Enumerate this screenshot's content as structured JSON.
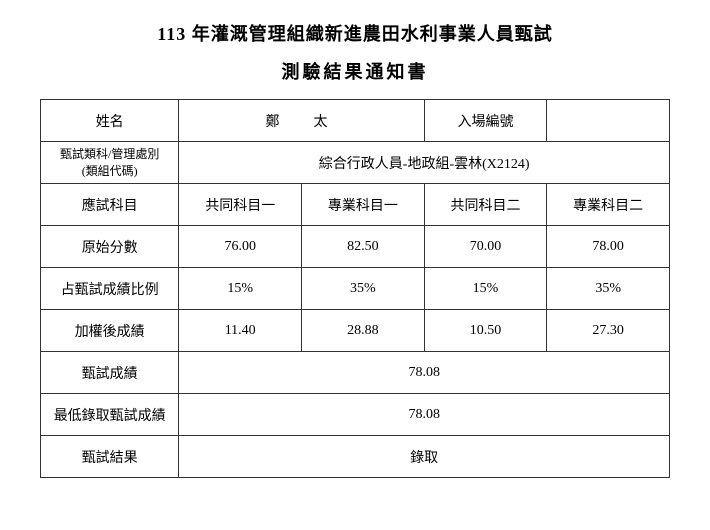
{
  "title": {
    "line1": "113 年灌溉管理組織新進農田水利事業人員甄試",
    "line2": "測驗結果通知書"
  },
  "labels": {
    "name": "姓名",
    "admission_number": "入場編號",
    "category_line1": "甄試類科/管理處別",
    "category_line2": "(類組代碼)",
    "subjects": "應試科目",
    "raw_scores": "原始分數",
    "weight_ratio": "占甄試成績比例",
    "weighted_scores": "加權後成績",
    "exam_score": "甄試成績",
    "min_pass_score": "最低錄取甄試成績",
    "exam_result": "甄試結果"
  },
  "data": {
    "name": "鄭　太",
    "admission_number": "",
    "category": "綜合行政人員-地政組-雲林(X2124)",
    "subjects": [
      "共同科目一",
      "專業科目一",
      "共同科目二",
      "專業科目二"
    ],
    "raw_scores": [
      "76.00",
      "82.50",
      "70.00",
      "78.00"
    ],
    "weight_ratio": [
      "15%",
      "35%",
      "15%",
      "35%"
    ],
    "weighted_scores": [
      "11.40",
      "28.88",
      "10.50",
      "27.30"
    ],
    "exam_score": "78.08",
    "min_pass_score": "78.08",
    "exam_result": "錄取"
  }
}
